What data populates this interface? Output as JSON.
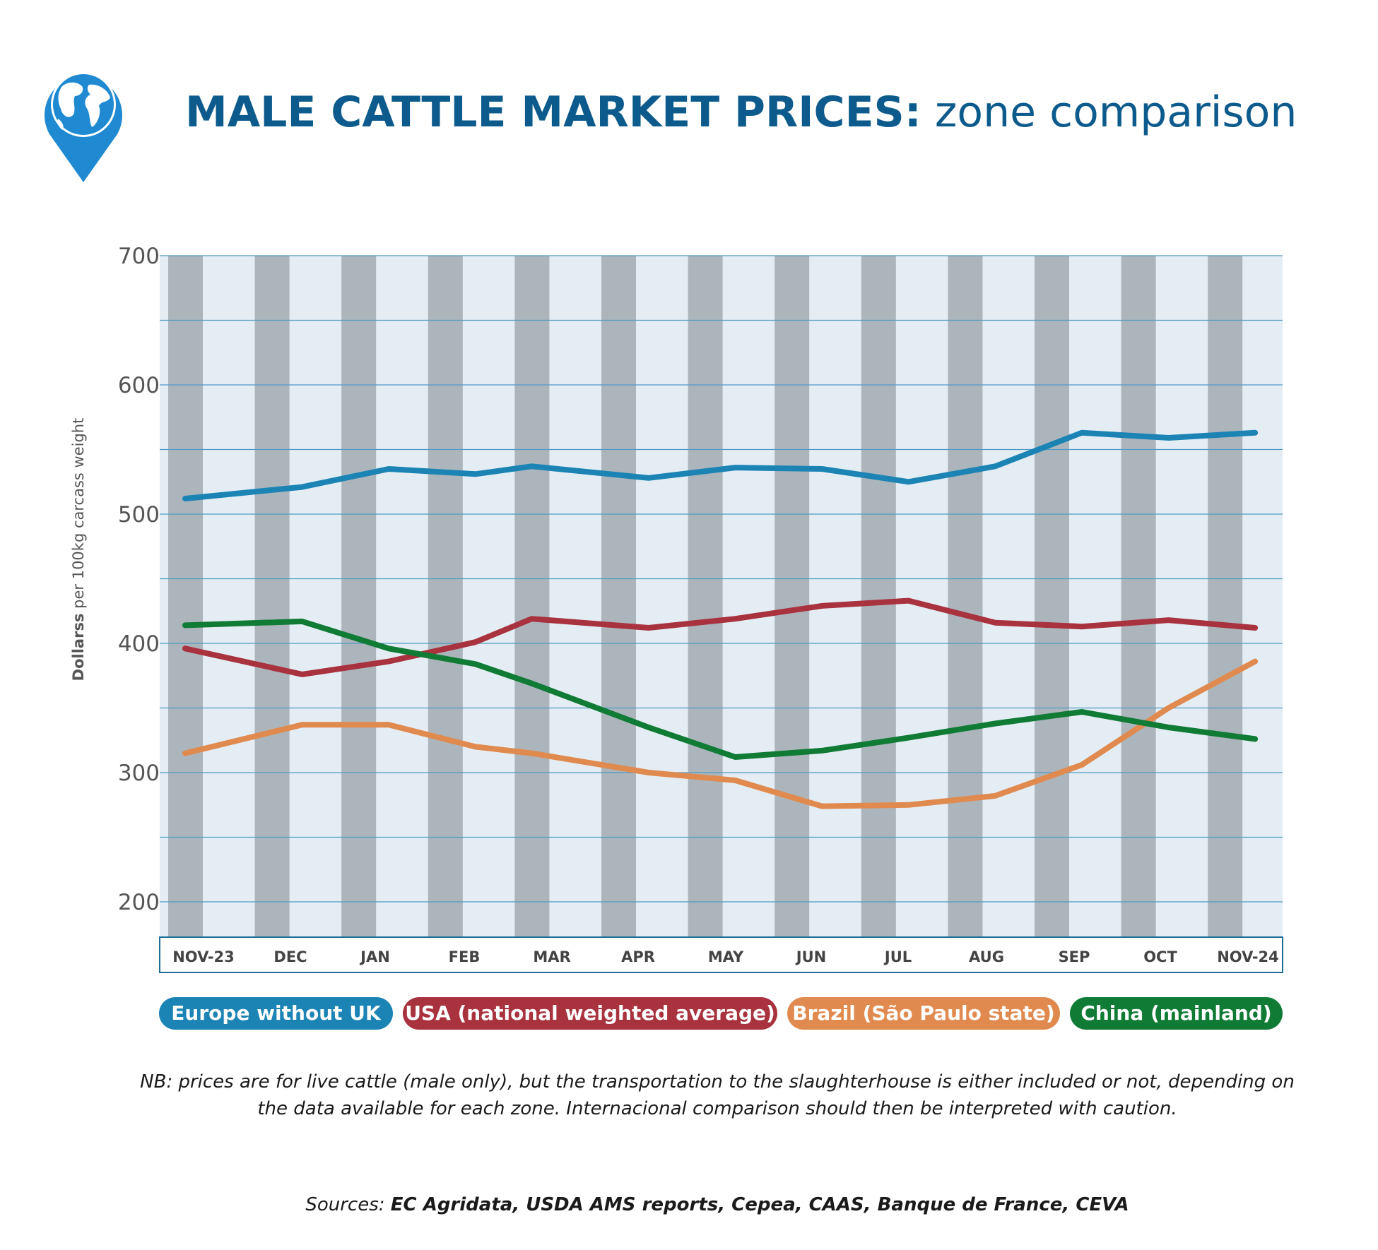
{
  "header": {
    "title_bold": "MALE CATTLE MARKET PRICES:",
    "title_rest": "zone comparison",
    "icon": "globe-pin-icon"
  },
  "chart_data": {
    "type": "line",
    "title": "MALE CATTLE MARKET PRICES: zone comparison",
    "categories": [
      "NOV-23",
      "DEC",
      "JAN",
      "FEB",
      "MAR",
      "APR",
      "MAY",
      "JUN",
      "JUL",
      "AUG",
      "SEP",
      "OCT",
      "NOV-24"
    ],
    "x": [
      "NOV-23",
      "DEC",
      "JAN",
      "FEB",
      "MAR",
      "APR",
      "MAY",
      "JUN",
      "JUL",
      "AUG",
      "SEP",
      "OCT",
      "NOV-24"
    ],
    "ylabel": "Dollarss per 100kg carcass weight",
    "ylabel_bold": "Dollarss",
    "ylabel_rest": "per 100kg carcass weight",
    "xlabel": "",
    "ylim": [
      175,
      700
    ],
    "yticks": [
      200,
      300,
      400,
      500,
      600,
      700
    ],
    "grid": true,
    "legend_position": "bottom",
    "series": [
      {
        "name": "Europe without UK",
        "color": "#1b84b5",
        "x": [
          0,
          1.35,
          2.35,
          3.35,
          4.0,
          5.35,
          6.35,
          7.35,
          8.35,
          9.35,
          10.35,
          11.35,
          12.35
        ],
        "values": [
          512,
          521,
          535,
          531,
          537,
          528,
          536,
          535,
          525,
          537,
          563,
          559,
          563
        ]
      },
      {
        "name": "USA (national weighted average)",
        "color": "#a8323e",
        "x": [
          0,
          1.35,
          2.35,
          3.35,
          4.0,
          5.35,
          6.35,
          7.35,
          8.35,
          9.35,
          10.35,
          11.35,
          12.35
        ],
        "values": [
          396,
          376,
          386,
          401,
          419,
          412,
          419,
          429,
          433,
          416,
          413,
          418,
          412
        ]
      },
      {
        "name": "Brazil (São Paulo state)",
        "color": "#e08a4f",
        "x": [
          0,
          1.35,
          2.35,
          3.35,
          4.0,
          5.35,
          6.35,
          7.35,
          8.35,
          9.35,
          10.35,
          11.35,
          12.35
        ],
        "values": [
          315,
          337,
          337,
          320,
          315,
          300,
          294,
          274,
          275,
          282,
          306,
          350,
          386
        ]
      },
      {
        "name": "China (mainland)",
        "color": "#107b35",
        "x": [
          0,
          1.35,
          2.35,
          3.35,
          4.0,
          5.35,
          6.35,
          7.35,
          8.35,
          9.35,
          10.35,
          11.35,
          12.35
        ],
        "values": [
          414,
          417,
          396,
          384,
          369,
          335,
          312,
          317,
          327,
          338,
          347,
          335,
          326
        ]
      }
    ]
  },
  "legend": {
    "items": [
      {
        "label": "Europe without UK",
        "color": "#1b84b5"
      },
      {
        "label": "USA (national weighted average)",
        "color": "#a8323e"
      },
      {
        "label": "Brazil (São Paulo state)",
        "color": "#e08a4f"
      },
      {
        "label": "China (mainland)",
        "color": "#107b35"
      }
    ]
  },
  "note": "NB: prices are for live cattle (male only), but the transportation to the slaughterhouse is either included or not, depending on the data available for each zone. Internacional comparison should then be interpreted with caution.",
  "sources": {
    "prefix": "Sources:",
    "list": "EC Agridata, USDA AMS reports, Cepea, CAAS, Banque de France, CEVA"
  },
  "colors": {
    "title": "#0d5b8c",
    "band_dark": "#acb5bb",
    "band_light": "#e4edf3",
    "grid": "#4f9ac4",
    "axis_box": "#1e6e96"
  }
}
